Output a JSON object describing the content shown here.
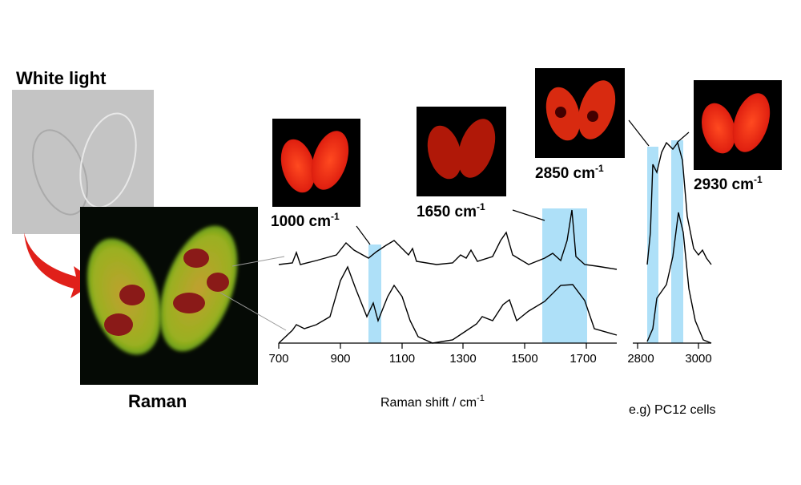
{
  "panels": {
    "white_light": "White light",
    "raman": "Raman"
  },
  "maps": [
    {
      "text": "1000 cm",
      "sup": "-1"
    },
    {
      "text": "1650 cm",
      "sup": "-1"
    },
    {
      "text": "2850 cm",
      "sup": "-1"
    },
    {
      "text": "2930 cm",
      "sup": "-1"
    }
  ],
  "axis": {
    "left_ticks": [
      "700",
      "900",
      "1100",
      "1300",
      "1500",
      "1700"
    ],
    "right_ticks": [
      "2800",
      "3000"
    ],
    "label": {
      "text": "Raman shift / cm",
      "sup": "-1"
    }
  },
  "note": "e.g) PC12 cells"
}
